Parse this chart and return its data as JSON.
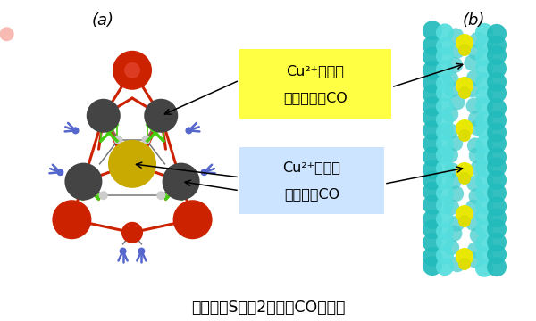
{
  "bg_color": "#ffffff",
  "fig_width": 6.0,
  "fig_height": 3.6,
  "label_a": "(a)",
  "label_b": "(b)",
  "caption": "ナノ細孔Sには2種類のCOがいる",
  "box1_line1": "Cu²⁺と結合",
  "box1_line2": "していないCO",
  "box1_color": "#ffff44",
  "box2_line1": "Cu²⁺と結合",
  "box2_line2": "しているCO",
  "box2_color": "#cce4ff",
  "red_color": "#cc2200",
  "dark_gray": "#444444",
  "mid_gray": "#777777",
  "green_color": "#44cc11",
  "blue_color": "#5566cc",
  "gold_color": "#c8aa00",
  "cyan_dark": "#22bbbb",
  "cyan_light": "#55dddd",
  "yellow_co": "#e8e800"
}
